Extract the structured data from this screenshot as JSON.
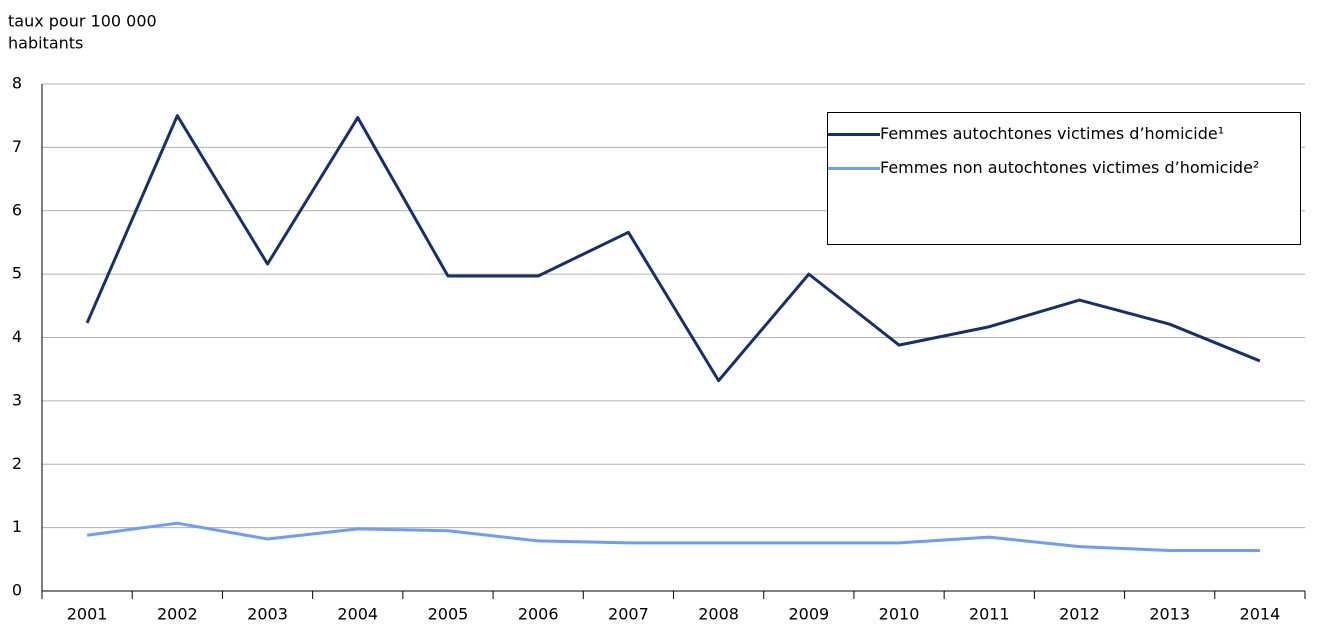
{
  "chart_data": {
    "type": "line",
    "y_label": [
      "taux pour 100 000",
      "habitants"
    ],
    "categories": [
      "2001",
      "2002",
      "2003",
      "2004",
      "2005",
      "2006",
      "2007",
      "2008",
      "2009",
      "2010",
      "2011",
      "2012",
      "2013",
      "2014"
    ],
    "series": [
      {
        "name": "Femmes autochtones victimes d’homicide¹",
        "color": "#172f6b",
        "values": [
          4.23,
          7.5,
          5.16,
          7.47,
          4.97,
          4.97,
          5.66,
          3.32,
          5.0,
          3.88,
          4.17,
          4.59,
          4.21,
          3.63
        ]
      },
      {
        "name": "Femmes non autochtones victimes d’homicide²",
        "color": "#6f9cf5",
        "values": [
          0.88,
          1.07,
          0.82,
          0.98,
          0.95,
          0.79,
          0.76,
          0.76,
          0.76,
          0.76,
          0.85,
          0.7,
          0.64,
          0.64
        ]
      }
    ],
    "ylim": [
      0,
      8
    ],
    "yticks": [
      0,
      1,
      2,
      3,
      4,
      5,
      6,
      7,
      8
    ],
    "grid": true,
    "legend": "top-right"
  }
}
